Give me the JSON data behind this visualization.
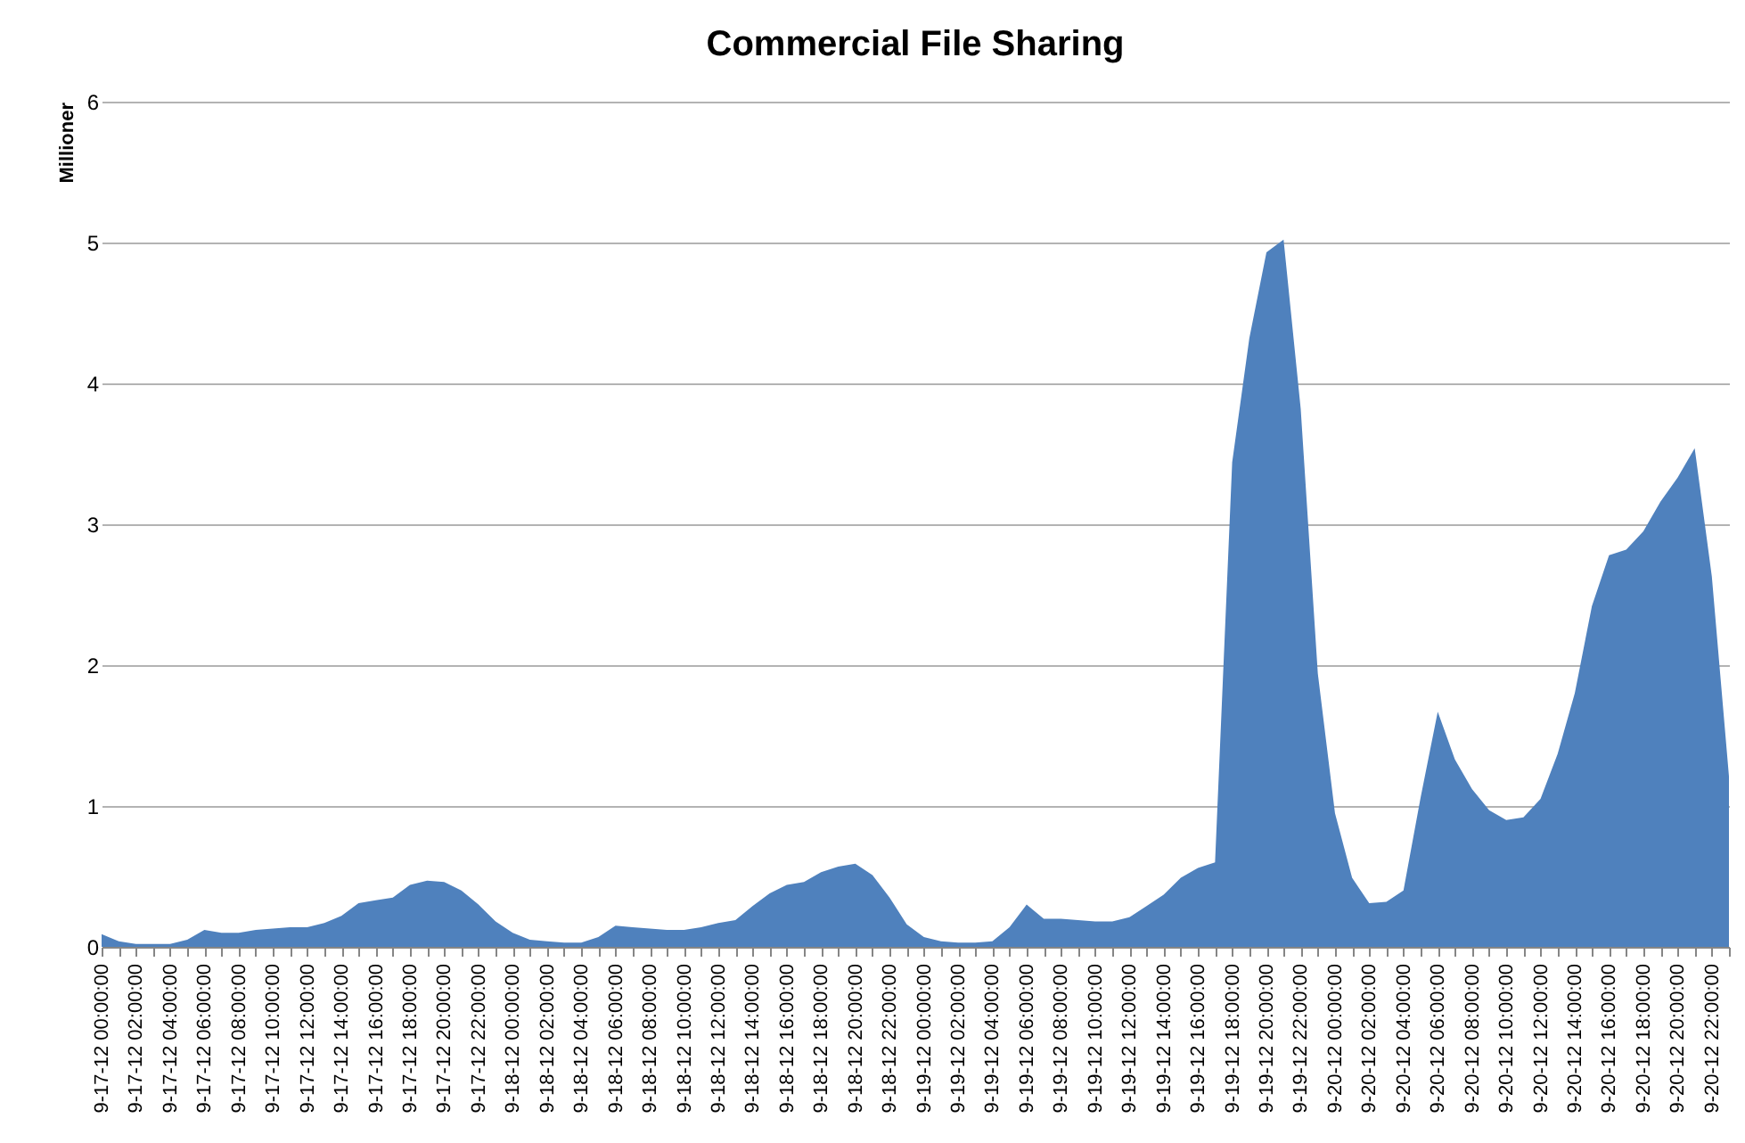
{
  "chart_data": {
    "type": "area",
    "title": "Commercial File Sharing",
    "ylabel": "Millioner",
    "categories": [
      "9-17-12 00:00:00",
      null,
      "9-17-12 02:00:00",
      null,
      "9-17-12 04:00:00",
      null,
      "9-17-12 06:00:00",
      null,
      "9-17-12 08:00:00",
      null,
      "9-17-12 10:00:00",
      null,
      "9-17-12 12:00:00",
      null,
      "9-17-12 14:00:00",
      null,
      "9-17-12 16:00:00",
      null,
      "9-17-12 18:00:00",
      null,
      "9-17-12 20:00:00",
      null,
      "9-17-12 22:00:00",
      null,
      "9-18-12 00:00:00",
      null,
      "9-18-12 02:00:00",
      null,
      "9-18-12 04:00:00",
      null,
      "9-18-12 06:00:00",
      null,
      "9-18-12 08:00:00",
      null,
      "9-18-12 10:00:00",
      null,
      "9-18-12 12:00:00",
      null,
      "9-18-12 14:00:00",
      null,
      "9-18-12 16:00:00",
      null,
      "9-18-12 18:00:00",
      null,
      "9-18-12 20:00:00",
      null,
      "9-18-12 22:00:00",
      null,
      "9-19-12 00:00:00",
      null,
      "9-19-12 02:00:00",
      null,
      "9-19-12 04:00:00",
      null,
      "9-19-12 06:00:00",
      null,
      "9-19-12 08:00:00",
      null,
      "9-19-12 10:00:00",
      null,
      "9-19-12 12:00:00",
      null,
      "9-19-12 14:00:00",
      null,
      "9-19-12 16:00:00",
      null,
      "9-19-12 18:00:00",
      null,
      "9-19-12 20:00:00",
      null,
      "9-19-12 22:00:00",
      null,
      "9-20-12 00:00:00",
      null,
      "9-20-12 02:00:00",
      null,
      "9-20-12 04:00:00",
      null,
      "9-20-12 06:00:00",
      null,
      "9-20-12 08:00:00",
      null,
      "9-20-12 10:00:00",
      null,
      "9-20-12 12:00:00",
      null,
      "9-20-12 14:00:00",
      null,
      "9-20-12 16:00:00",
      null,
      "9-20-12 18:00:00",
      null,
      "9-20-12 20:00:00",
      null,
      "9-20-12 22:00:00",
      null
    ],
    "series": [
      {
        "color": "#4f81bd",
        "values": [
          0.09,
          0.04,
          0.02,
          0.02,
          0.02,
          0.05,
          0.12,
          0.1,
          0.1,
          0.12,
          0.13,
          0.14,
          0.14,
          0.17,
          0.22,
          0.31,
          0.33,
          0.35,
          0.44,
          0.47,
          0.46,
          0.4,
          0.3,
          0.18,
          0.1,
          0.05,
          0.04,
          0.03,
          0.03,
          0.07,
          0.15,
          0.14,
          0.13,
          0.12,
          0.12,
          0.14,
          0.17,
          0.19,
          0.29,
          0.38,
          0.44,
          0.46,
          0.53,
          0.57,
          0.59,
          0.51,
          0.35,
          0.16,
          0.07,
          0.04,
          0.03,
          0.03,
          0.04,
          0.14,
          0.3,
          0.2,
          0.2,
          0.19,
          0.18,
          0.18,
          0.21,
          0.29,
          0.37,
          0.49,
          0.56,
          0.6,
          3.44,
          4.32,
          4.93,
          5.02,
          3.82,
          1.94,
          0.95,
          0.49,
          0.31,
          0.32,
          0.4,
          1.06,
          1.67,
          1.33,
          1.12,
          0.97,
          0.9,
          0.92,
          1.05,
          1.37,
          1.8,
          2.42,
          2.78,
          2.82,
          2.95,
          3.16,
          3.33,
          3.54,
          2.63,
          1.21
        ]
      }
    ],
    "ylim": [
      0,
      6
    ],
    "yticks": [
      0,
      1,
      2,
      3,
      4,
      5,
      6
    ],
    "grid": "y"
  }
}
